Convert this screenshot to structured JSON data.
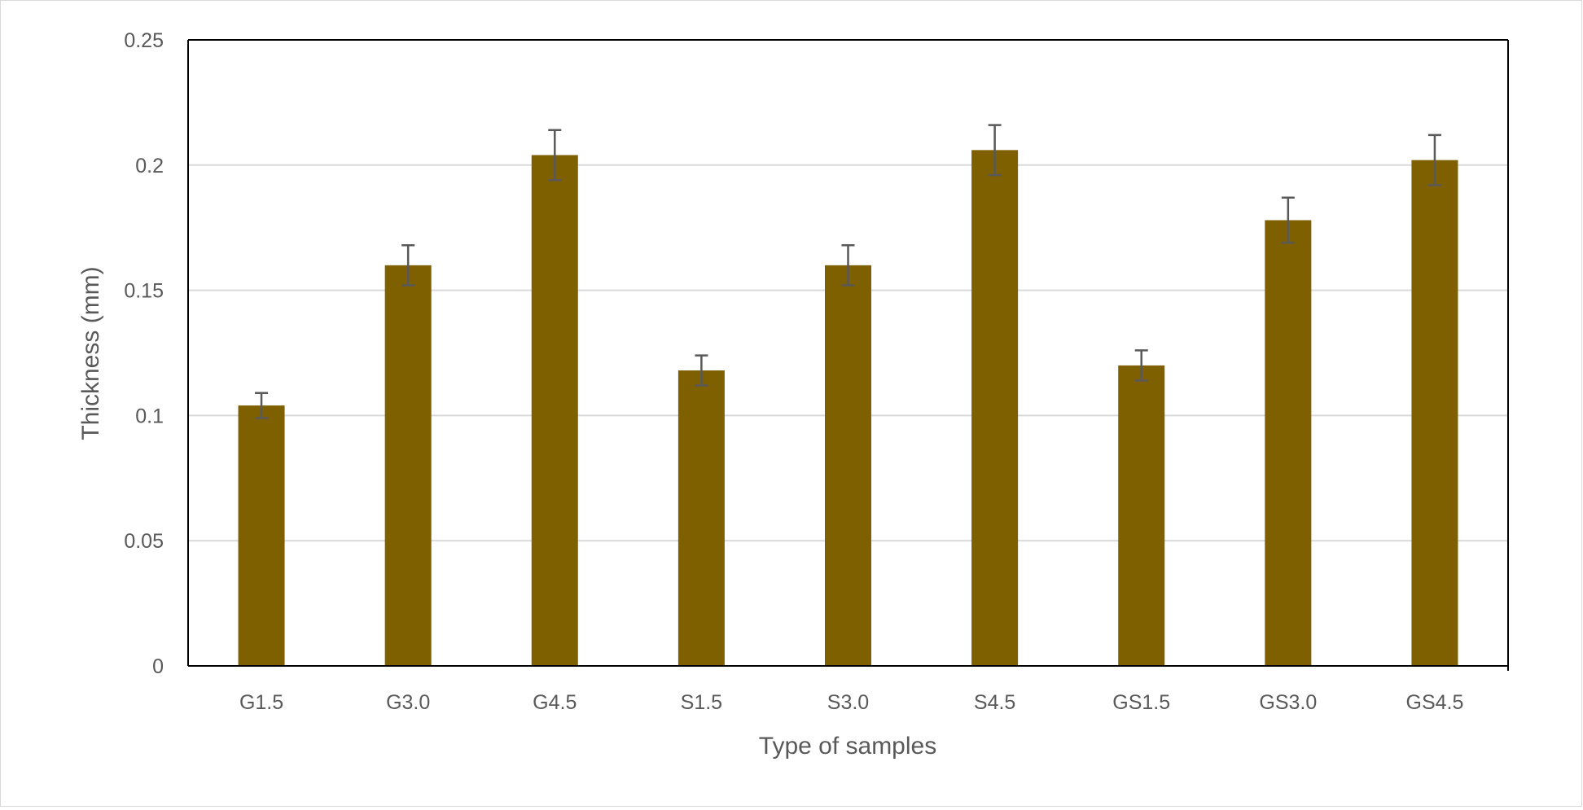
{
  "chart_data": {
    "type": "bar",
    "title": "",
    "xlabel": "Type of samples",
    "ylabel": "Thickness (mm)",
    "categories": [
      "G1.5",
      "G3.0",
      "G4.5",
      "S1.5",
      "S3.0",
      "S4.5",
      "GS1.5",
      "GS3.0",
      "GS4.5"
    ],
    "values": [
      0.104,
      0.16,
      0.204,
      0.118,
      0.16,
      0.206,
      0.12,
      0.178,
      0.202
    ],
    "error": [
      0.005,
      0.008,
      0.01,
      0.006,
      0.008,
      0.01,
      0.006,
      0.009,
      0.01
    ],
    "ylim": [
      0,
      0.25
    ],
    "yticks": [
      "0",
      "0.05",
      "0.1",
      "0.15",
      "0.2",
      "0.25"
    ],
    "grid": true,
    "legend": "none",
    "bar_color": "#7f6000",
    "error_color": "#595959",
    "grid_color": "#d9d9d9"
  }
}
